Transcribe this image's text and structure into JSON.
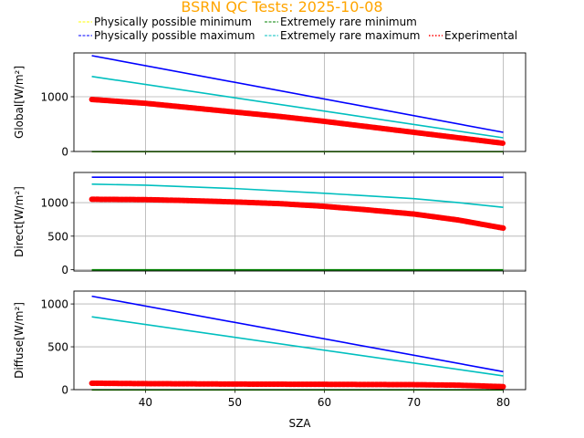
{
  "title": "BSRN QC Tests: 2025-10-08",
  "colors": {
    "title": "#ffa500",
    "phys_min": "#ffff00",
    "phys_max": "#0000ff",
    "rare_min": "#008000",
    "rare_max": "#00bfbf",
    "experimental": "#ff0000",
    "grid": "#b0b0b0"
  },
  "legend": {
    "placement": "top",
    "entries": [
      {
        "key": "phys_min",
        "label": "Physically possible minimum",
        "style": "dashed"
      },
      {
        "key": "phys_max",
        "label": "Physically possible maximum",
        "style": "dashed"
      },
      {
        "key": "rare_min",
        "label": "Extremely rare minimum",
        "style": "dashed"
      },
      {
        "key": "rare_max",
        "label": "Extremely rare maximum",
        "style": "dashed"
      },
      {
        "key": "experimental",
        "label": "Experimental",
        "style": "dotted"
      }
    ]
  },
  "chart_data": [
    {
      "type": "line",
      "ylabel": "Global[W/m²]",
      "xlim": [
        32,
        82.5
      ],
      "ylim": [
        0,
        1800
      ],
      "yticks": [
        0,
        1000
      ],
      "xticks": [
        40,
        50,
        60,
        70,
        80
      ],
      "show_xticklabels": false,
      "grid": true,
      "series": [
        {
          "name": "Physically possible minimum",
          "key": "phys_min",
          "x": [
            34,
            80
          ],
          "y": [
            -4,
            -4
          ]
        },
        {
          "name": "Physically possible maximum",
          "key": "phys_max",
          "x": [
            34,
            80
          ],
          "y": [
            1750,
            350
          ]
        },
        {
          "name": "Extremely rare minimum",
          "key": "rare_min",
          "x": [
            34,
            80
          ],
          "y": [
            -2,
            -2
          ]
        },
        {
          "name": "Extremely rare maximum",
          "key": "rare_max",
          "x": [
            34,
            80
          ],
          "y": [
            1370,
            250
          ]
        },
        {
          "name": "Experimental",
          "key": "experimental",
          "x": [
            34,
            40,
            45,
            50,
            55,
            60,
            65,
            70,
            75,
            80
          ],
          "y": [
            950,
            880,
            800,
            720,
            640,
            550,
            450,
            350,
            250,
            150
          ]
        }
      ]
    },
    {
      "type": "line",
      "ylabel": "Direct[W/m²]",
      "xlim": [
        32,
        82.5
      ],
      "ylim": [
        -20,
        1450
      ],
      "yticks": [
        0,
        500,
        1000
      ],
      "xticks": [
        40,
        50,
        60,
        70,
        80
      ],
      "show_xticklabels": false,
      "grid": true,
      "series": [
        {
          "name": "Physically possible minimum",
          "key": "phys_min",
          "x": [
            34,
            80
          ],
          "y": [
            -4,
            -4
          ]
        },
        {
          "name": "Physically possible maximum",
          "key": "phys_max",
          "x": [
            34,
            80
          ],
          "y": [
            1380,
            1380
          ]
        },
        {
          "name": "Extremely rare minimum",
          "key": "rare_min",
          "x": [
            34,
            80
          ],
          "y": [
            -2,
            -2
          ]
        },
        {
          "name": "Extremely rare maximum",
          "key": "rare_max",
          "x": [
            34,
            40,
            50,
            60,
            70,
            75,
            80
          ],
          "y": [
            1275,
            1260,
            1210,
            1140,
            1060,
            1000,
            930
          ]
        },
        {
          "name": "Experimental",
          "key": "experimental",
          "x": [
            34,
            40,
            45,
            50,
            55,
            60,
            65,
            70,
            75,
            80
          ],
          "y": [
            1050,
            1045,
            1030,
            1010,
            985,
            945,
            890,
            830,
            740,
            620
          ]
        }
      ]
    },
    {
      "type": "line",
      "ylabel": "Diffuse[W/m²]",
      "xlabel": "SZA",
      "xlim": [
        32,
        82.5
      ],
      "ylim": [
        0,
        1150
      ],
      "yticks": [
        0,
        500,
        1000
      ],
      "xticks": [
        40,
        50,
        60,
        70,
        80
      ],
      "show_xticklabels": true,
      "grid": true,
      "series": [
        {
          "name": "Physically possible minimum",
          "key": "phys_min",
          "x": [
            34,
            80
          ],
          "y": [
            -4,
            -4
          ]
        },
        {
          "name": "Physically possible maximum",
          "key": "phys_max",
          "x": [
            34,
            80
          ],
          "y": [
            1090,
            210
          ]
        },
        {
          "name": "Extremely rare minimum",
          "key": "rare_min",
          "x": [
            34,
            80
          ],
          "y": [
            -2,
            -2
          ]
        },
        {
          "name": "Extremely rare maximum",
          "key": "rare_max",
          "x": [
            34,
            80
          ],
          "y": [
            850,
            160
          ]
        },
        {
          "name": "Experimental",
          "key": "experimental",
          "x": [
            34,
            40,
            50,
            60,
            70,
            75,
            80
          ],
          "y": [
            75,
            70,
            65,
            62,
            58,
            52,
            35
          ]
        }
      ]
    }
  ]
}
